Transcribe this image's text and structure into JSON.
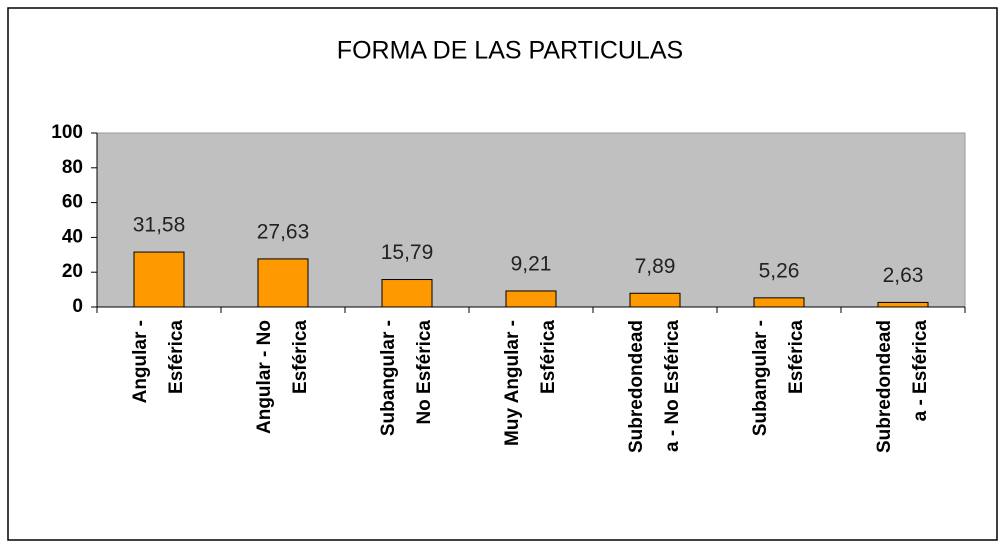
{
  "chart_data": {
    "type": "bar",
    "title": "FORMA DE LAS PARTICULAS",
    "categories": [
      [
        "Angular -",
        "Esférica"
      ],
      [
        "Angular - No",
        "Esférica"
      ],
      [
        "Subangular -",
        "No Esférica"
      ],
      [
        "Muy Angular -",
        "Esférica"
      ],
      [
        "Subredondead",
        "a - No Esférica"
      ],
      [
        "Subangular -",
        "Esférica"
      ],
      [
        "Subredondead",
        "a - Esférica"
      ]
    ],
    "values": [
      31.58,
      27.63,
      15.79,
      9.21,
      7.89,
      5.26,
      2.63
    ],
    "value_labels": [
      "31,58",
      "27,63",
      "15,79",
      "9,21",
      "7,89",
      "5,26",
      "2,63"
    ],
    "color": "#ff9900",
    "ylim": [
      0,
      100
    ],
    "yticks": [
      0,
      20,
      40,
      60,
      80,
      100
    ]
  }
}
